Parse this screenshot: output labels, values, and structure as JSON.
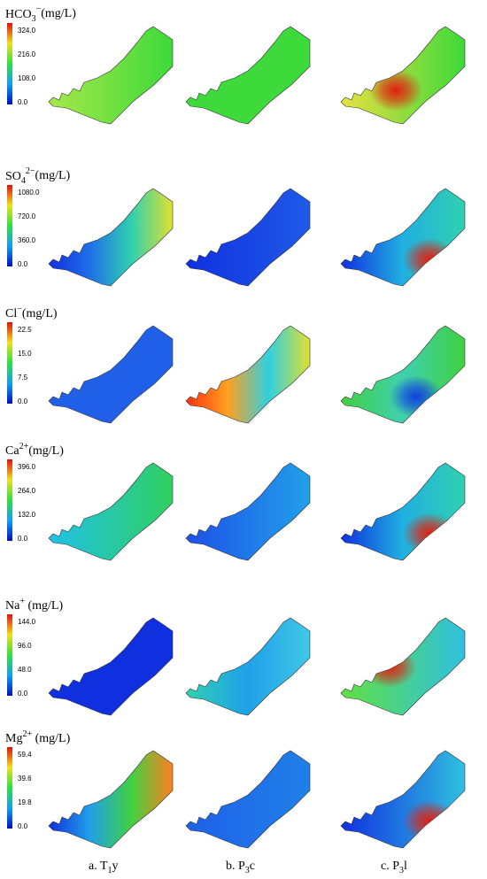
{
  "panels": [
    {
      "title": {
        "base": "HCO",
        "sub": "3",
        "sup": "−",
        "unit": "(mg/L)"
      },
      "ticks": [
        "0.0",
        "108.0",
        "216.0",
        "324.0"
      ]
    },
    {
      "title": {
        "base": "SO",
        "sub": "4",
        "sup": "2−",
        "unit": "(mg/L)"
      },
      "ticks": [
        "0.0",
        "360.0",
        "720.0",
        "1080.0"
      ]
    },
    {
      "title": {
        "base": "Cl",
        "sub": "",
        "sup": "−",
        "unit": "(mg/L)"
      },
      "ticks": [
        "0.0",
        "7.5",
        "15.0",
        "22.5"
      ]
    },
    {
      "title": {
        "base": "Ca",
        "sub": "",
        "sup": "2+",
        "unit": "(mg/L)"
      },
      "ticks": [
        "0.0",
        "132.0",
        "264.0",
        "396.0"
      ]
    },
    {
      "title": {
        "base": "Na",
        "sub": "",
        "sup": "+",
        "unit": " (mg/L)"
      },
      "ticks": [
        "0.0",
        "48.0",
        "96.0",
        "144.0"
      ]
    },
    {
      "title": {
        "base": "Mg",
        "sub": "",
        "sup": "2+",
        "unit": " (mg/L)"
      },
      "ticks": [
        "0.0",
        "19.8",
        "39.6",
        "59.4"
      ]
    }
  ],
  "columns": [
    {
      "prefix": "a. T",
      "sub": "1",
      "suffix": "y"
    },
    {
      "prefix": "b. P",
      "sub": "3",
      "suffix": "c"
    },
    {
      "prefix": "c. P",
      "sub": "3",
      "suffix": "l"
    }
  ]
}
